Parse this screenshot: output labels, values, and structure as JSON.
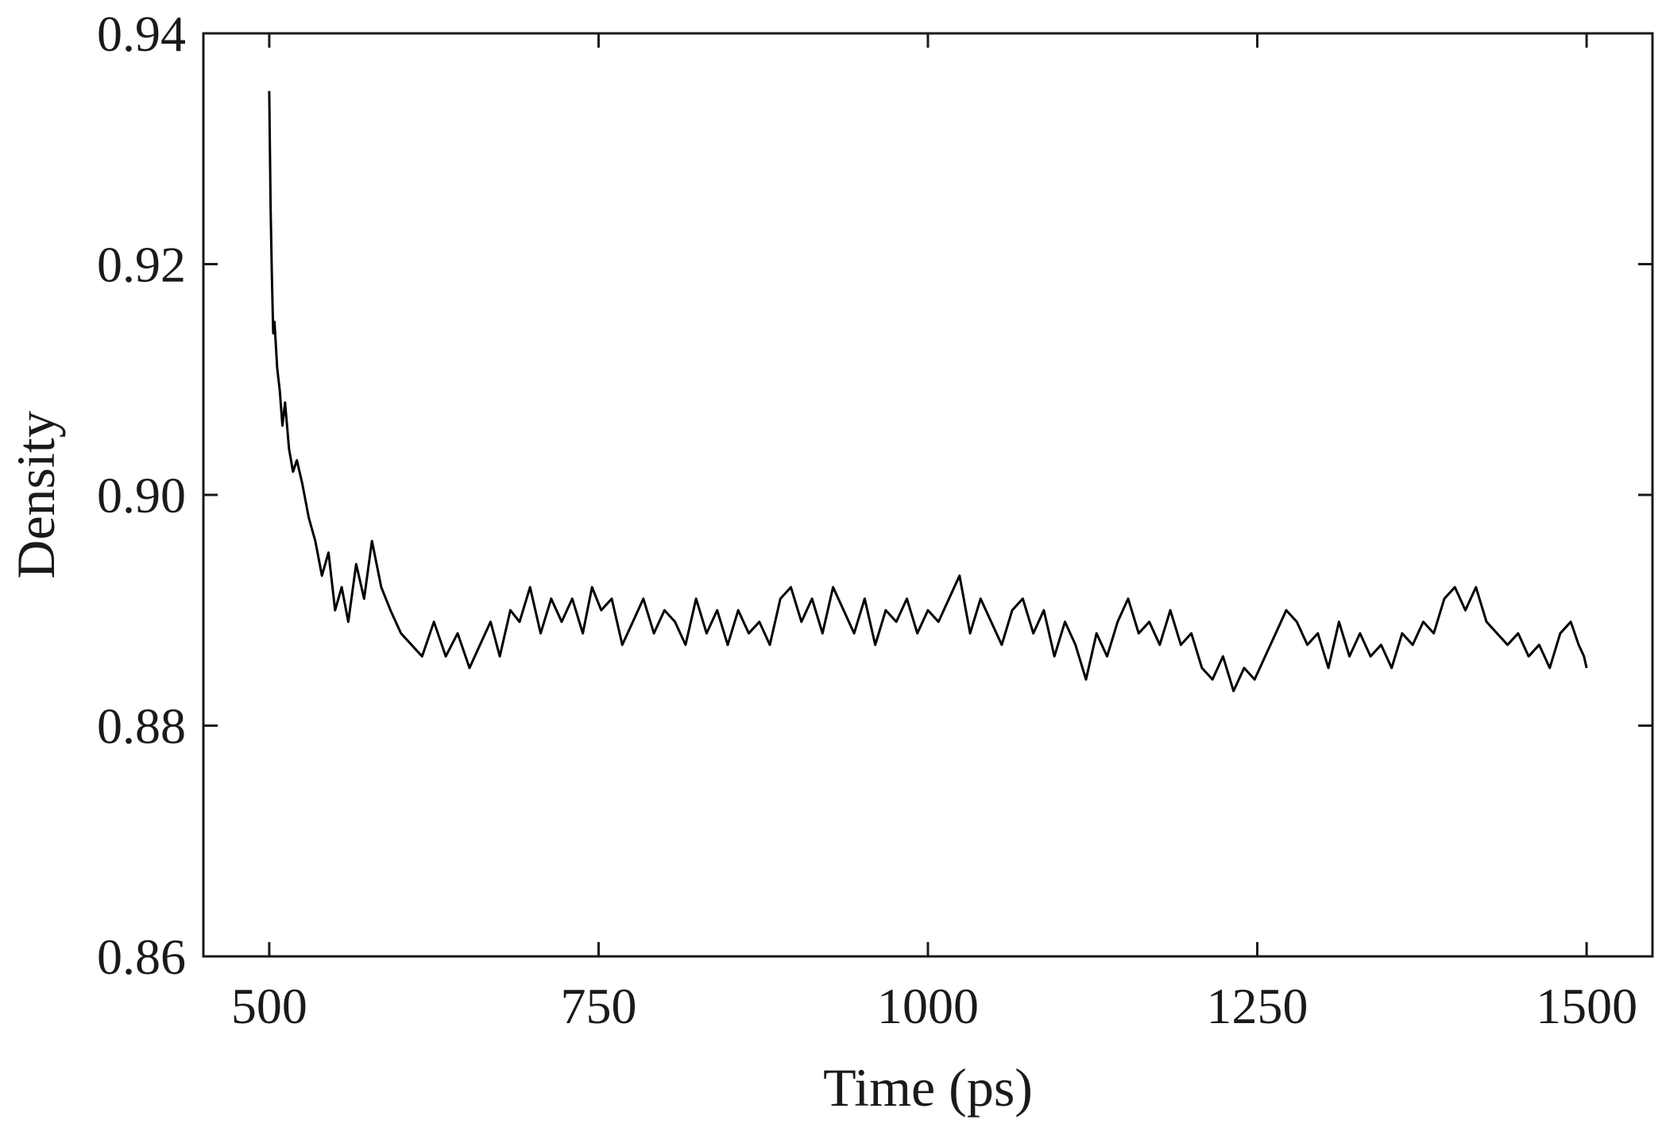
{
  "chart_data": {
    "type": "line",
    "title": "",
    "xlabel": "Time (ps)",
    "ylabel": "Density",
    "xlim": [
      450,
      1550
    ],
    "ylim": [
      0.86,
      0.94
    ],
    "x_ticks": [
      500,
      750,
      1000,
      1250,
      1500
    ],
    "x_tick_labels": [
      "500",
      "750",
      "1000",
      "1250",
      "1500"
    ],
    "y_ticks": [
      0.86,
      0.88,
      0.9,
      0.92,
      0.94
    ],
    "y_tick_labels": [
      "0.86",
      "0.88",
      "0.90",
      "0.92",
      "0.94"
    ],
    "grid": false,
    "box": true,
    "line_color": "#000000",
    "series": [
      {
        "x": [
          500,
          501,
          502,
          503,
          504,
          506,
          508,
          510,
          512,
          515,
          518,
          521,
          525,
          530,
          535,
          540,
          545,
          550,
          555,
          560,
          566,
          572,
          578,
          585,
          592,
          600,
          608,
          616,
          625,
          634,
          643,
          652,
          660,
          668,
          675,
          683,
          690,
          698,
          706,
          714,
          722,
          730,
          738,
          745,
          752,
          760,
          768,
          776,
          784,
          792,
          800,
          808,
          816,
          824,
          832,
          840,
          848,
          856,
          864,
          872,
          880,
          888,
          896,
          904,
          912,
          920,
          928,
          936,
          944,
          952,
          960,
          968,
          976,
          984,
          992,
          1000,
          1008,
          1016,
          1024,
          1032,
          1040,
          1048,
          1056,
          1064,
          1072,
          1080,
          1088,
          1096,
          1104,
          1112,
          1120,
          1128,
          1136,
          1144,
          1152,
          1160,
          1168,
          1176,
          1184,
          1192,
          1200,
          1208,
          1216,
          1224,
          1232,
          1240,
          1248,
          1256,
          1264,
          1272,
          1280,
          1288,
          1296,
          1304,
          1312,
          1320,
          1328,
          1336,
          1344,
          1352,
          1360,
          1368,
          1376,
          1384,
          1392,
          1400,
          1408,
          1416,
          1424,
          1432,
          1440,
          1448,
          1456,
          1464,
          1472,
          1480,
          1488,
          1494,
          1498,
          1500
        ],
        "y": [
          0.935,
          0.925,
          0.919,
          0.914,
          0.915,
          0.911,
          0.909,
          0.906,
          0.908,
          0.904,
          0.902,
          0.903,
          0.901,
          0.898,
          0.896,
          0.893,
          0.895,
          0.89,
          0.892,
          0.889,
          0.894,
          0.891,
          0.896,
          0.892,
          0.89,
          0.888,
          0.887,
          0.886,
          0.889,
          0.886,
          0.888,
          0.885,
          0.887,
          0.889,
          0.886,
          0.89,
          0.889,
          0.892,
          0.888,
          0.891,
          0.889,
          0.891,
          0.888,
          0.892,
          0.89,
          0.891,
          0.887,
          0.889,
          0.891,
          0.888,
          0.89,
          0.889,
          0.887,
          0.891,
          0.888,
          0.89,
          0.887,
          0.89,
          0.888,
          0.889,
          0.887,
          0.891,
          0.892,
          0.889,
          0.891,
          0.888,
          0.892,
          0.89,
          0.888,
          0.891,
          0.887,
          0.89,
          0.889,
          0.891,
          0.888,
          0.89,
          0.889,
          0.891,
          0.893,
          0.888,
          0.891,
          0.889,
          0.887,
          0.89,
          0.891,
          0.888,
          0.89,
          0.886,
          0.889,
          0.887,
          0.884,
          0.888,
          0.886,
          0.889,
          0.891,
          0.888,
          0.889,
          0.887,
          0.89,
          0.887,
          0.888,
          0.885,
          0.884,
          0.886,
          0.883,
          0.885,
          0.884,
          0.886,
          0.888,
          0.89,
          0.889,
          0.887,
          0.888,
          0.885,
          0.889,
          0.886,
          0.888,
          0.886,
          0.887,
          0.885,
          0.888,
          0.887,
          0.889,
          0.888,
          0.891,
          0.892,
          0.89,
          0.892,
          0.889,
          0.888,
          0.887,
          0.888,
          0.886,
          0.887,
          0.885,
          0.888,
          0.889,
          0.887,
          0.886,
          0.885
        ]
      }
    ]
  }
}
